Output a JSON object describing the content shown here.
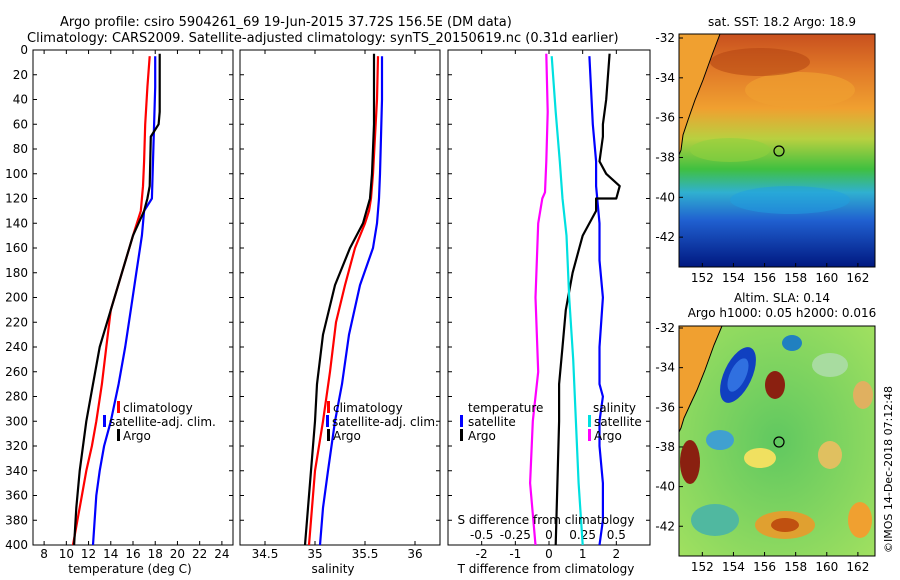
{
  "title": {
    "line1": "Argo profile: csiro 5904261_69 19-Jun-2015 37.72S 156.5E (DM data)",
    "line2": "Climatology: CARS2009. Satellite-adjusted climatology: synTS_20150619.nc (0.31d earlier)"
  },
  "colors": {
    "climatology": "#ff0000",
    "satellite": "#0000ff",
    "argo": "#000000",
    "sal_clim": "#ff00ff",
    "sal_sat": "#00e0e0"
  },
  "depth_axis": {
    "ticks": [
      0,
      20,
      40,
      60,
      80,
      100,
      120,
      140,
      160,
      180,
      200,
      220,
      240,
      260,
      280,
      300,
      320,
      340,
      360,
      380,
      400
    ],
    "range": [
      0,
      400
    ]
  },
  "chart_data": [
    {
      "type": "line",
      "id": "temperature",
      "xlabel": "temperature (deg C)",
      "ylabel": "depth",
      "xlim": [
        7,
        25
      ],
      "ylim": [
        400,
        0
      ],
      "xticks": [
        8,
        10,
        12,
        14,
        16,
        18,
        20,
        22,
        24
      ],
      "legend": [
        "climatology",
        "satellite-adj. clim.",
        "Argo"
      ],
      "series": [
        {
          "name": "climatology",
          "color": "#ff0000",
          "x": [
            17.5,
            17.3,
            17.1,
            17.0,
            16.9,
            16.7,
            16.0,
            15.0,
            14.0,
            13.6,
            13.2,
            12.7,
            12.3,
            11.8,
            11.4,
            11.0,
            10.6
          ],
          "y": [
            5,
            30,
            60,
            90,
            110,
            130,
            150,
            180,
            210,
            240,
            270,
            300,
            320,
            340,
            360,
            380,
            400
          ]
        },
        {
          "name": "satellite-adj. clim.",
          "color": "#0000ff",
          "x": [
            18.0,
            18.0,
            17.9,
            17.8,
            17.7,
            17.0,
            16.8,
            16.3,
            15.8,
            15.3,
            14.7,
            14.0,
            13.4,
            13.0,
            12.7,
            12.4
          ],
          "y": [
            5,
            30,
            60,
            90,
            120,
            130,
            150,
            180,
            210,
            240,
            270,
            300,
            320,
            340,
            360,
            400
          ]
        },
        {
          "name": "Argo",
          "color": "#000000",
          "x": [
            18.4,
            18.4,
            18.3,
            17.6,
            17.5,
            17.3,
            17.0,
            16.0,
            15.0,
            14.0,
            13.0,
            12.4,
            11.8,
            11.2,
            10.9,
            10.7
          ],
          "y": [
            3,
            50,
            60,
            70,
            110,
            120,
            130,
            150,
            180,
            210,
            240,
            270,
            300,
            340,
            370,
            400
          ]
        }
      ]
    },
    {
      "type": "line",
      "id": "salinity",
      "xlabel": "salinity",
      "ylabel": "depth",
      "xlim": [
        34.25,
        36.25
      ],
      "ylim": [
        400,
        0
      ],
      "xticks": [
        34.5,
        35,
        35.5,
        36
      ],
      "legend": [
        "climatology",
        "satellite-adj. clim.",
        "Argo"
      ],
      "series": [
        {
          "name": "climatology",
          "color": "#ff0000",
          "x": [
            35.63,
            35.62,
            35.6,
            35.58,
            35.56,
            35.54,
            35.5,
            35.4,
            35.3,
            35.21,
            35.15,
            35.08,
            35.04,
            35.0,
            34.97,
            34.94
          ],
          "y": [
            5,
            40,
            70,
            100,
            120,
            130,
            140,
            160,
            190,
            220,
            260,
            300,
            320,
            340,
            370,
            400
          ]
        },
        {
          "name": "satellite-adj. clim.",
          "color": "#0000ff",
          "x": [
            35.67,
            35.67,
            35.66,
            35.65,
            35.64,
            35.62,
            35.58,
            35.45,
            35.34,
            35.27,
            35.2,
            35.13,
            35.08,
            35.05
          ],
          "y": [
            5,
            40,
            70,
            100,
            120,
            140,
            160,
            190,
            230,
            270,
            300,
            340,
            370,
            400
          ]
        },
        {
          "name": "Argo",
          "color": "#000000",
          "x": [
            35.59,
            35.59,
            35.57,
            35.55,
            35.48,
            35.35,
            35.2,
            35.08,
            35.02,
            35.0,
            34.98,
            34.94,
            34.9
          ],
          "y": [
            3,
            60,
            100,
            120,
            140,
            160,
            190,
            230,
            270,
            300,
            320,
            360,
            400
          ]
        }
      ]
    },
    {
      "type": "line",
      "id": "difference",
      "xlabel": "T difference from climatology",
      "xlabel_top": "S difference from climatology",
      "xlim": [
        -3,
        3
      ],
      "ylim": [
        400,
        0
      ],
      "xticks": [
        -2,
        -1,
        0,
        1,
        2
      ],
      "s_ticks": [
        -0.5,
        -0.25,
        0,
        0.25,
        0.5
      ],
      "legend_left_title": "temperature",
      "legend_right_title": "salinity",
      "legend_left": [
        "satellite",
        "Argo"
      ],
      "legend_right": [
        "satellite",
        "Argo"
      ],
      "series": [
        {
          "name": "T satellite",
          "color": "#0000ff",
          "x": [
            1.2,
            1.3,
            1.4,
            1.4,
            1.5,
            1.5,
            1.6,
            1.5,
            1.5,
            1.6,
            1.5,
            1.5,
            1.6,
            1.6,
            1.5
          ],
          "y": [
            5,
            60,
            90,
            110,
            140,
            170,
            200,
            240,
            270,
            280,
            300,
            320,
            350,
            380,
            400
          ]
        },
        {
          "name": "T Argo",
          "color": "#000000",
          "x": [
            1.8,
            1.7,
            1.6,
            1.6,
            1.5,
            1.7,
            2.1,
            2.0,
            1.4,
            1.4,
            1.0,
            0.9,
            0.7,
            0.5,
            0.4,
            0.3,
            0.3,
            0.2
          ],
          "y": [
            3,
            40,
            60,
            70,
            90,
            100,
            110,
            120,
            120,
            130,
            150,
            160,
            180,
            210,
            240,
            270,
            300,
            400
          ]
        },
        {
          "name": "S satellite",
          "color": "#00e0e0",
          "x": [
            0.02,
            0.05,
            0.08,
            0.1,
            0.13,
            0.15,
            0.18,
            0.2,
            0.22,
            0.25
          ],
          "y": [
            5,
            50,
            90,
            120,
            150,
            200,
            250,
            300,
            350,
            400
          ]
        },
        {
          "name": "S Argo",
          "color": "#ff00ff",
          "x": [
            -0.02,
            -0.01,
            -0.02,
            -0.03,
            -0.05,
            -0.08,
            -0.1,
            -0.08,
            -0.12,
            -0.14,
            -0.1
          ],
          "y": [
            3,
            50,
            90,
            115,
            120,
            140,
            200,
            260,
            300,
            350,
            400
          ]
        }
      ]
    }
  ],
  "maps": [
    {
      "id": "sst",
      "title": "sat. SST: 18.2 Argo: 18.9",
      "lat_ticks": [
        -32,
        -34,
        -36,
        -38,
        -40,
        -42
      ],
      "lon_ticks": [
        152,
        154,
        156,
        158,
        160,
        162
      ]
    },
    {
      "id": "sla",
      "title1": "Altim. SLA: 0.14",
      "title2": "Argo h1000: 0.05 h2000: 0.016",
      "lat_ticks": [
        -32,
        -34,
        -36,
        -38,
        -40,
        -42
      ],
      "lon_ticks": [
        152,
        154,
        156,
        158,
        160,
        162
      ]
    }
  ],
  "credit": "©IMOS 14-Dec-2018 07:12:48"
}
